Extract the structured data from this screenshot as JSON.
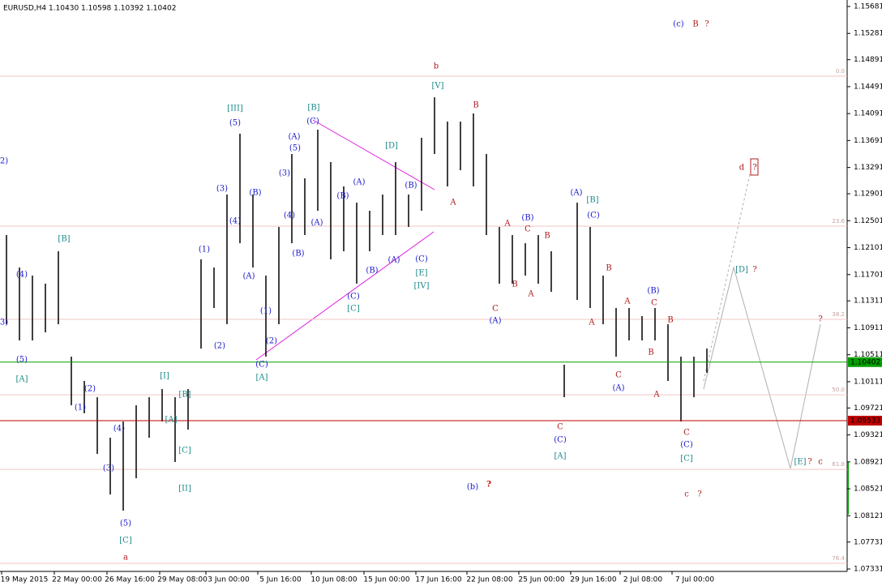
{
  "header": {
    "symbol_line": "EURUSD,H4  1.10430 1.10598 1.10392 1.10402"
  },
  "chart_data": {
    "type": "hilo",
    "high": [
      1.12288,
      1.11806,
      1.11686,
      1.11566,
      1.12047,
      1.10483,
      1.10122,
      1.09881,
      1.0928,
      1.0952,
      1.09761,
      1.09881,
      1.10002,
      1.09881,
      1.10002,
      1.11927,
      1.11806,
      1.12889,
      1.13792,
      1.12889,
      1.11686,
      1.12408,
      1.13491,
      1.1313,
      1.13852,
      1.13371,
      1.1301,
      1.12769,
      1.12649,
      1.12889,
      1.13371,
      1.12889,
      1.13732,
      1.14333,
      1.13972,
      1.13972,
      1.14093,
      1.13491,
      1.12408,
      1.12288,
      1.12167,
      1.12288,
      1.12047,
      1.10363,
      1.12769,
      1.12408,
      1.11686,
      1.11205,
      1.11205,
      1.11085,
      1.11205,
      1.10964,
      1.10483,
      1.10483,
      1.10603
    ],
    "low": [
      1.10964,
      1.10724,
      1.10724,
      1.10844,
      1.10964,
      1.09761,
      1.09641,
      1.09039,
      1.08437,
      1.08197,
      1.08678,
      1.0928,
      1.0952,
      1.08919,
      1.094,
      1.10603,
      1.11205,
      1.10964,
      1.12167,
      1.11806,
      1.10483,
      1.10964,
      1.12167,
      1.12288,
      1.12649,
      1.11927,
      1.12047,
      1.11566,
      1.12047,
      1.12288,
      1.12288,
      1.12408,
      1.12649,
      1.13491,
      1.1301,
      1.1325,
      1.1301,
      1.12288,
      1.11566,
      1.11566,
      1.11686,
      1.11566,
      1.11445,
      1.09881,
      1.11325,
      1.11205,
      1.10964,
      1.10483,
      1.10724,
      1.10724,
      1.10724,
      1.10122,
      1.0952,
      1.09881,
      1.10243
    ],
    "color": "#000000",
    "ylim": [
      1.07295,
      1.15777
    ],
    "yticks": [
      1.15681,
      1.15281,
      1.14891,
      1.14491,
      1.14091,
      1.13691,
      1.13291,
      1.12901,
      1.12501,
      1.12101,
      1.11701,
      1.11311,
      1.10911,
      1.10511,
      1.10111,
      1.09721,
      1.09321,
      1.08921,
      1.08521,
      1.08121,
      1.07731,
      1.07331
    ],
    "xtick_labels": [
      "19 May 2015",
      "22 May 00:00",
      "26 May 16:00",
      "29 May 08:00",
      "3 Jun 00:00",
      "5 Jun 16:00",
      "10 Jun 08:00",
      "15 Jun 00:00",
      "17 Jun 16:00",
      "22 Jun 08:00",
      "25 Jun 00:00",
      "29 Jun 16:00",
      "2 Jul 08:00",
      "7 Jul 00:00"
    ],
    "hlines": [
      {
        "value": 1.09533,
        "color": "#c00000"
      },
      {
        "value": 1.10402,
        "color": "#00a000"
      }
    ],
    "fib_levels": [
      {
        "value": 1.14646,
        "label": "0.0"
      },
      {
        "value": 1.1242,
        "label": "23.6"
      },
      {
        "value": 1.11036,
        "label": "38.2"
      },
      {
        "value": 1.09917,
        "label": "50.0"
      },
      {
        "value": 1.0881,
        "label": "61.8"
      },
      {
        "value": 1.07415,
        "label": "76.4"
      }
    ],
    "annotations": [
      {
        "text": "2)",
        "color": "#1a1acc"
      },
      {
        "text": "3)",
        "color": "#1a1acc"
      },
      {
        "text": "(4)",
        "color": "#1a1acc"
      },
      {
        "text": "(5)",
        "color": "#1a1acc"
      },
      {
        "text": "[A]",
        "color": "#1f8a8a"
      },
      {
        "text": "[B]",
        "color": "#1f8a8a"
      },
      {
        "text": "(2)",
        "color": "#1a1acc"
      },
      {
        "text": "(1)",
        "color": "#1a1acc"
      },
      {
        "text": "(4)",
        "color": "#1a1acc"
      },
      {
        "text": "(3)",
        "color": "#1a1acc"
      },
      {
        "text": "(5)",
        "color": "#1a1acc"
      },
      {
        "text": "[C]",
        "color": "#1f8a8a"
      },
      {
        "text": "a",
        "color": "#b01c1c"
      },
      {
        "text": "[I]",
        "color": "#1f8a8a"
      },
      {
        "text": "[B]",
        "color": "#1f8a8a"
      },
      {
        "text": "[A]",
        "color": "#1f8a8a"
      },
      {
        "text": "[C]",
        "color": "#1f8a8a"
      },
      {
        "text": "[II]",
        "color": "#1f8a8a"
      },
      {
        "text": "(1)",
        "color": "#1a1acc"
      },
      {
        "text": "(2)",
        "color": "#1a1acc"
      },
      {
        "text": "(3)",
        "color": "#1a1acc"
      },
      {
        "text": "(4)",
        "color": "#1a1acc"
      },
      {
        "text": "(5)",
        "color": "#1a1acc"
      },
      {
        "text": "[III]",
        "color": "#1f8a8a"
      },
      {
        "text": "(A)",
        "color": "#1a1acc"
      },
      {
        "text": "(B)",
        "color": "#1a1acc"
      },
      {
        "text": "(1)",
        "color": "#1a1acc"
      },
      {
        "text": "(2)",
        "color": "#1a1acc"
      },
      {
        "text": "(C)",
        "color": "#1a1acc"
      },
      {
        "text": "[A]",
        "color": "#1f8a8a"
      },
      {
        "text": "(3)",
        "color": "#1a1acc"
      },
      {
        "text": "(4)",
        "color": "#1a1acc"
      },
      {
        "text": "(5)",
        "color": "#1a1acc"
      },
      {
        "text": "(A)",
        "color": "#1a1acc"
      },
      {
        "text": "(B)",
        "color": "#1a1acc"
      },
      {
        "text": "(A)",
        "color": "#1a1acc"
      },
      {
        "text": "(C)",
        "color": "#1a1acc"
      },
      {
        "text": "[B]",
        "color": "#1f8a8a"
      },
      {
        "text": "(B)",
        "color": "#1a1acc"
      },
      {
        "text": "(A)",
        "color": "#1a1acc"
      },
      {
        "text": "(C)",
        "color": "#1a1acc"
      },
      {
        "text": "[C]",
        "color": "#1f8a8a"
      },
      {
        "text": "(B)",
        "color": "#1a1acc"
      },
      {
        "text": "(A)",
        "color": "#1a1acc"
      },
      {
        "text": "(B)",
        "color": "#1a1acc"
      },
      {
        "text": "[D]",
        "color": "#1f8a8a"
      },
      {
        "text": "(C)",
        "color": "#1a1acc"
      },
      {
        "text": "[E]",
        "color": "#1f8a8a"
      },
      {
        "text": "[IV]",
        "color": "#1f8a8a"
      },
      {
        "text": "[V]",
        "color": "#1f8a8a"
      },
      {
        "text": "b",
        "color": "#b01c1c"
      },
      {
        "text": "A",
        "color": "#b01c1c"
      },
      {
        "text": "B",
        "color": "#b01c1c"
      },
      {
        "text": "A",
        "color": "#b01c1c"
      },
      {
        "text": "C",
        "color": "#b01c1c"
      },
      {
        "text": "B",
        "color": "#b01c1c"
      },
      {
        "text": "B",
        "color": "#b01c1c"
      },
      {
        "text": "A",
        "color": "#b01c1c"
      },
      {
        "text": "C",
        "color": "#b01c1c"
      },
      {
        "text": "(A)",
        "color": "#1a1acc"
      },
      {
        "text": "(B)",
        "color": "#1a1acc"
      },
      {
        "text": "(A)",
        "color": "#1a1acc"
      },
      {
        "text": "[B]",
        "color": "#1f8a8a"
      },
      {
        "text": "(C)",
        "color": "#1a1acc"
      },
      {
        "text": "B",
        "color": "#b01c1c"
      },
      {
        "text": "A",
        "color": "#b01c1c"
      },
      {
        "text": "A",
        "color": "#b01c1c"
      },
      {
        "text": "C",
        "color": "#b01c1c"
      },
      {
        "text": "(B)",
        "color": "#1a1acc"
      },
      {
        "text": "B",
        "color": "#b01c1c"
      },
      {
        "text": "B",
        "color": "#b01c1c"
      },
      {
        "text": "C",
        "color": "#b01c1c"
      },
      {
        "text": "(A)",
        "color": "#1a1acc"
      },
      {
        "text": "A",
        "color": "#b01c1c"
      },
      {
        "text": "C",
        "color": "#b01c1c"
      },
      {
        "text": "(C)",
        "color": "#1a1acc"
      },
      {
        "text": "[A]",
        "color": "#1f8a8a"
      },
      {
        "text": "C",
        "color": "#b01c1c"
      },
      {
        "text": "(C)",
        "color": "#1a1acc"
      },
      {
        "text": "[C]",
        "color": "#1f8a8a"
      },
      {
        "text": "c",
        "color": "#b01c1c"
      },
      {
        "text": "?",
        "color": "#b01c1c"
      },
      {
        "text": "(c)",
        "color": "#1a1acc"
      },
      {
        "text": "B",
        "color": "#b01c1c"
      },
      {
        "text": "?",
        "color": "#b01c1c"
      },
      {
        "text": "(b)",
        "color": "#1a1acc"
      },
      {
        "text": "?",
        "color": "#cc0000"
      },
      {
        "text": "d",
        "color": "#b01c1c"
      },
      {
        "text": "?",
        "color": "#b01c1c"
      },
      {
        "text": "[D]",
        "color": "#1f8a8a"
      },
      {
        "text": "?",
        "color": "#b01c1c"
      },
      {
        "text": "?",
        "color": "#b01c1c"
      },
      {
        "text": "[E]",
        "color": "#1f8a8a"
      },
      {
        "text": "?",
        "color": "#b01c1c"
      },
      {
        "text": "c",
        "color": "#b01c1c"
      }
    ]
  }
}
